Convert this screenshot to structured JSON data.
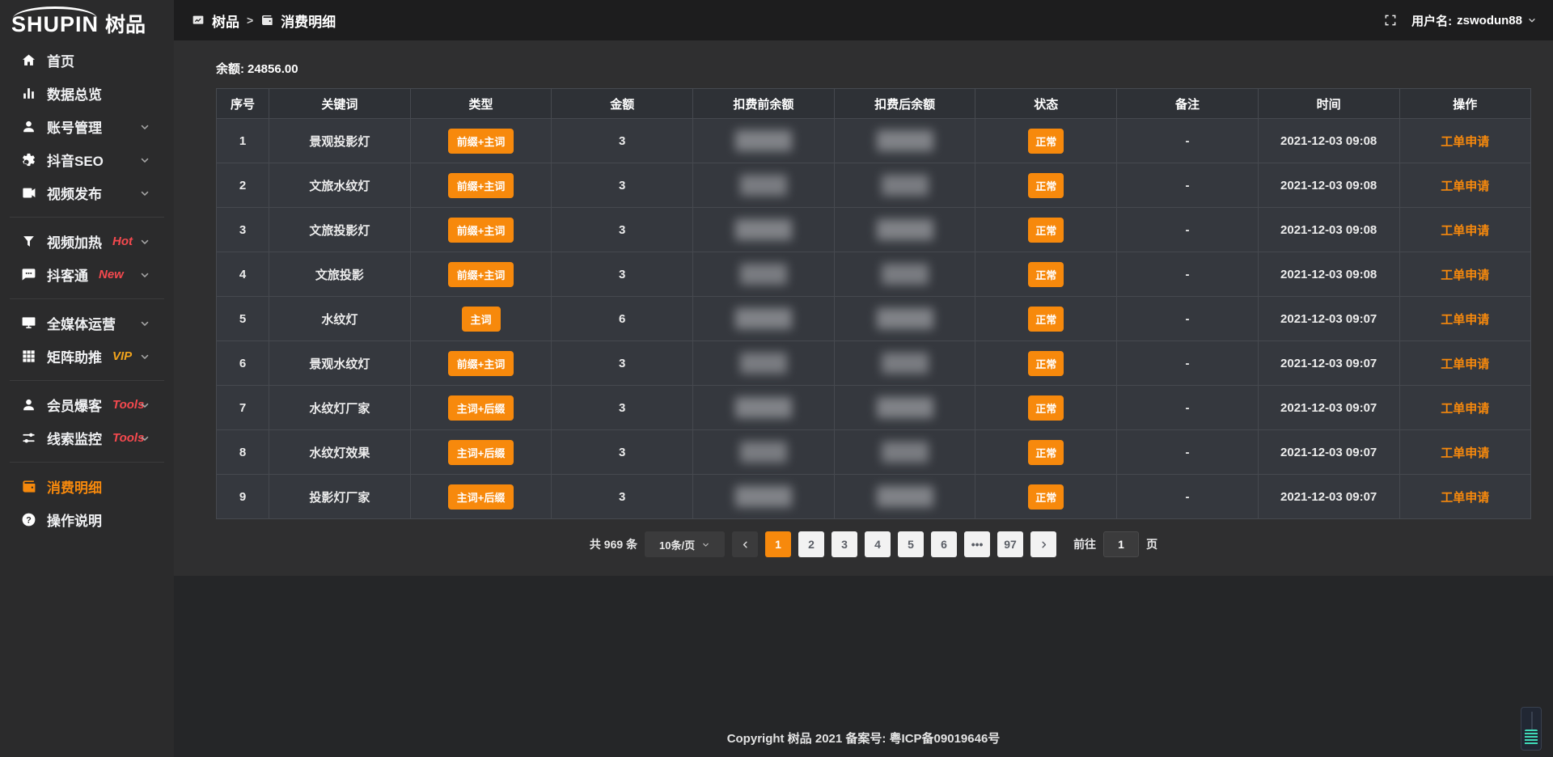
{
  "logo": {
    "brand_en": "SHUPIN",
    "brand_cn": "树品"
  },
  "topbar": {
    "breadcrumb_home": "树品",
    "breadcrumb_sep": ">",
    "breadcrumb_current": "消费明细",
    "username_label": "用户名:",
    "username": "zswodun88"
  },
  "sidebar": {
    "items": [
      {
        "name": "home",
        "label": "首页",
        "icon": "home-icon"
      },
      {
        "name": "data-overview",
        "label": "数据总览",
        "icon": "bar-chart-icon"
      },
      {
        "name": "account-management",
        "label": "账号管理",
        "icon": "user-icon",
        "expandable": true
      },
      {
        "name": "douyin-seo",
        "label": "抖音SEO",
        "icon": "gear-icon",
        "expandable": true
      },
      {
        "name": "video-publish",
        "label": "视频发布",
        "icon": "video-camera-icon",
        "expandable": true,
        "divider_after": true
      },
      {
        "name": "video-heating",
        "label": "视频加热",
        "tag": "Hot",
        "tag_style": "red",
        "icon": "funnel-icon",
        "expandable": true
      },
      {
        "name": "douketong",
        "label": "抖客通",
        "tag": "New",
        "tag_style": "red",
        "icon": "chat-bubble-icon",
        "expandable": true,
        "divider_after": true
      },
      {
        "name": "all-media-operation",
        "label": "全媒体运营",
        "icon": "monitor-icon",
        "expandable": true
      },
      {
        "name": "matrix-boost",
        "label": "矩阵助推",
        "tag": "VIP",
        "tag_style": "vip",
        "icon": "grid-icon",
        "expandable": true,
        "divider_after": true
      },
      {
        "name": "member-burst",
        "label": "会员爆客",
        "tag": "Tools",
        "tag_style": "red",
        "icon": "member-icon",
        "expandable": true
      },
      {
        "name": "lead-monitor",
        "label": "线索监控",
        "tag": "Tools",
        "tag_style": "red",
        "icon": "sliders-icon",
        "expandable": true,
        "divider_after": true
      },
      {
        "name": "consumption-detail",
        "label": "消费明细",
        "icon": "wallet-icon",
        "active": true
      },
      {
        "name": "instructions",
        "label": "操作说明",
        "icon": "question-icon"
      }
    ]
  },
  "balance": {
    "label": "余额:",
    "value": "24856.00"
  },
  "table": {
    "columns": [
      "序号",
      "关键词",
      "类型",
      "金额",
      "扣费前余额",
      "扣费后余额",
      "状态",
      "备注",
      "时间",
      "操作"
    ],
    "masked_columns": [
      "扣费前余额",
      "扣费后余额"
    ],
    "rows": [
      {
        "no": "1",
        "keyword": "景观投影灯",
        "type": "前缀+主词",
        "amount": "3",
        "status": "正常",
        "remark": "-",
        "time": "2021-12-03 09:08",
        "action": "工单申请"
      },
      {
        "no": "2",
        "keyword": "文旅水纹灯",
        "type": "前缀+主词",
        "amount": "3",
        "status": "正常",
        "remark": "-",
        "time": "2021-12-03 09:08",
        "action": "工单申请"
      },
      {
        "no": "3",
        "keyword": "文旅投影灯",
        "type": "前缀+主词",
        "amount": "3",
        "status": "正常",
        "remark": "-",
        "time": "2021-12-03 09:08",
        "action": "工单申请"
      },
      {
        "no": "4",
        "keyword": "文旅投影",
        "type": "前缀+主词",
        "amount": "3",
        "status": "正常",
        "remark": "-",
        "time": "2021-12-03 09:08",
        "action": "工单申请"
      },
      {
        "no": "5",
        "keyword": "水纹灯",
        "type": "主词",
        "amount": "6",
        "status": "正常",
        "remark": "-",
        "time": "2021-12-03 09:07",
        "action": "工单申请"
      },
      {
        "no": "6",
        "keyword": "景观水纹灯",
        "type": "前缀+主词",
        "amount": "3",
        "status": "正常",
        "remark": "-",
        "time": "2021-12-03 09:07",
        "action": "工单申请"
      },
      {
        "no": "7",
        "keyword": "水纹灯厂家",
        "type": "主词+后缀",
        "amount": "3",
        "status": "正常",
        "remark": "-",
        "time": "2021-12-03 09:07",
        "action": "工单申请"
      },
      {
        "no": "8",
        "keyword": "水纹灯效果",
        "type": "主词+后缀",
        "amount": "3",
        "status": "正常",
        "remark": "-",
        "time": "2021-12-03 09:07",
        "action": "工单申请"
      },
      {
        "no": "9",
        "keyword": "投影灯厂家",
        "type": "主词+后缀",
        "amount": "3",
        "status": "正常",
        "remark": "-",
        "time": "2021-12-03 09:07",
        "action": "工单申请"
      }
    ]
  },
  "pagination": {
    "total": "共 969 条",
    "page_size": "10条/页",
    "pages": [
      "1",
      "2",
      "3",
      "4",
      "5",
      "6",
      "•••",
      "97"
    ],
    "active_page": "1",
    "goto_label": "前往",
    "goto_value": "1",
    "goto_suffix": "页"
  },
  "footer": {
    "copyright": "Copyright 树品 2021 备案号: 粤ICP备09019646号"
  },
  "colors": {
    "accent": "#f7890c",
    "red_tag": "#f5494e",
    "vip_tag": "#f2a41c",
    "status_badge": "#f7890c"
  }
}
